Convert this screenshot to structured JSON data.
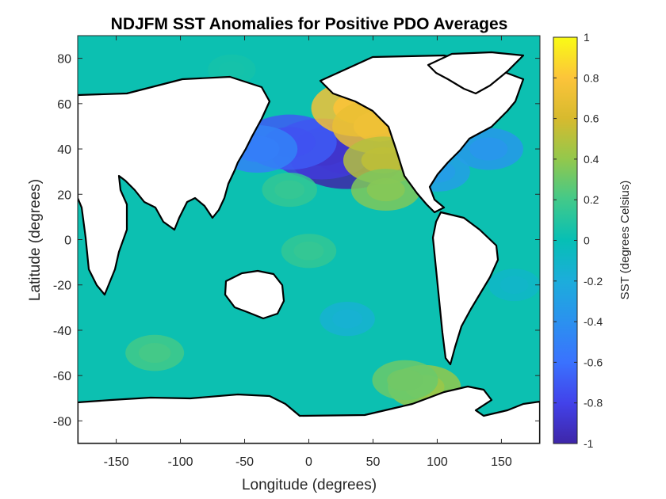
{
  "chart_data": {
    "type": "heatmap",
    "subtype": "filled-contour map",
    "title": "NDJFM SST Anomalies for Positive PDO Averages",
    "xlabel": "Longitude (degrees)",
    "ylabel": "Latitude (degrees)",
    "xlim": [
      -180,
      180
    ],
    "ylim": [
      -90,
      90
    ],
    "xticks": [
      -150,
      -100,
      -50,
      0,
      50,
      100,
      150
    ],
    "yticks": [
      -80,
      -60,
      -40,
      -20,
      0,
      20,
      40,
      60,
      80
    ],
    "colorbar": {
      "label": "SST (degrees Celsius)",
      "range": [
        -1,
        1
      ],
      "ticks": [
        -1,
        -0.8,
        -0.6,
        -0.4,
        -0.2,
        0,
        0.2,
        0.4,
        0.6,
        0.8,
        1
      ],
      "tick_labels": [
        "-1",
        "-0.8",
        "-0.6",
        "-0.4",
        "-0.2",
        "0",
        "0.2",
        "0.4",
        "0.6",
        "0.8",
        "1"
      ],
      "colormap": "parula",
      "stops": [
        "#3e26a8",
        "#4242ea",
        "#3a72fe",
        "#2b91ef",
        "#1caddb",
        "#06bfb5",
        "#42c98a",
        "#93c84c",
        "#d7ba2e",
        "#fcc43a",
        "#f9fb15"
      ]
    },
    "anomalies": [
      {
        "lon": 30,
        "lat": 37,
        "value": -1.0
      },
      {
        "lon": 10,
        "lat": 40,
        "value": -0.85
      },
      {
        "lon": -15,
        "lat": 43,
        "value": -0.7
      },
      {
        "lon": -40,
        "lat": 40,
        "value": -0.5
      },
      {
        "lon": 40,
        "lat": 58,
        "value": 0.75
      },
      {
        "lon": 55,
        "lat": 50,
        "value": 0.7
      },
      {
        "lon": 58,
        "lat": 35,
        "value": 0.5
      },
      {
        "lon": 60,
        "lat": 22,
        "value": 0.35
      },
      {
        "lon": -15,
        "lat": 22,
        "value": 0.15
      },
      {
        "lon": 0,
        "lat": -5,
        "value": 0.15
      },
      {
        "lon": 90,
        "lat": -65,
        "value": 0.4
      },
      {
        "lon": 75,
        "lat": -62,
        "value": 0.3
      },
      {
        "lon": -120,
        "lat": -50,
        "value": 0.2
      },
      {
        "lon": 140,
        "lat": 40,
        "value": -0.35
      },
      {
        "lon": 100,
        "lat": 30,
        "value": -0.3
      },
      {
        "lon": 160,
        "lat": -20,
        "value": -0.1
      },
      {
        "lon": 30,
        "lat": -35,
        "value": -0.15
      },
      {
        "lon": -60,
        "lat": 75,
        "value": 0.05
      }
    ],
    "land_fill": "#ffffff",
    "coastline_color": "#000000"
  }
}
